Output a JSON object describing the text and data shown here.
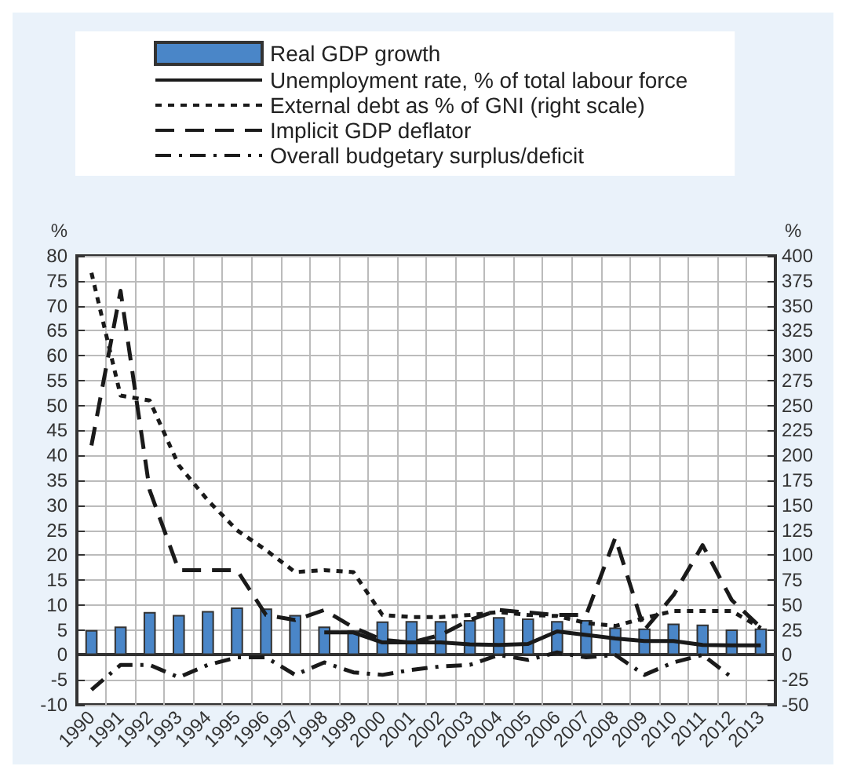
{
  "chart_data": {
    "type": "bar",
    "ylabel": "%",
    "y2label": "%",
    "categories": [
      "1990",
      "1991",
      "1992",
      "1993",
      "1994",
      "1995",
      "1996",
      "1997",
      "1998",
      "1999",
      "2000",
      "2001",
      "2002",
      "2003",
      "2004",
      "2005",
      "2006",
      "2007",
      "2008",
      "2009",
      "2010",
      "2011",
      "2012",
      "2013"
    ],
    "series": [
      {
        "name": "Real GDP growth",
        "color": "#4a86c8",
        "values": [
          5,
          5.7,
          8.6,
          8,
          8.8,
          9.5,
          9.3,
          8,
          5.7,
          4.9,
          6.7,
          6.8,
          6.8,
          7,
          7.6,
          7.3,
          6.8,
          7,
          5.5,
          5.3,
          6.3,
          6.1,
          5.1,
          5.3
        ]
      },
      {
        "name": "Unemployment rate, % of total labour force",
        "type": "line",
        "color": "#1a1a1a",
        "line_style": "solid",
        "values": [
          null,
          null,
          null,
          null,
          null,
          null,
          null,
          null,
          4.5,
          4.5,
          2.5,
          2.5,
          2.5,
          2.1,
          2,
          2.2,
          4.7,
          4,
          3.3,
          2.8,
          2.8,
          2,
          1.9,
          1.9
        ]
      },
      {
        "name": "External debt as % of GNI (right scale)",
        "type": "line",
        "axis": "y2",
        "color": "#1a1a1a",
        "line_style": "dotted",
        "values": [
          383,
          260,
          255,
          190,
          155,
          125,
          105,
          83,
          85,
          83,
          40,
          38,
          38,
          40,
          43,
          40,
          39,
          32,
          29,
          37,
          44,
          44,
          44,
          27
        ]
      },
      {
        "name": "Implicit GDP deflator",
        "type": "line",
        "color": "#1a1a1a",
        "line_style": "dashed",
        "values": [
          42,
          73,
          33,
          17,
          17,
          17,
          8,
          7,
          9,
          5.5,
          3,
          2.5,
          4,
          7,
          9,
          8.5,
          8,
          8,
          23.5,
          5,
          12,
          22,
          11,
          5.5
        ]
      },
      {
        "name": "Overall budgetary surplus/deficit",
        "type": "line",
        "color": "#1a1a1a",
        "line_style": "dashdot",
        "values": [
          -7,
          -2,
          -2,
          -4.5,
          -2,
          -0.5,
          -0.5,
          -4,
          -1.5,
          -3.5,
          -4,
          -3,
          -2.3,
          -2,
          0,
          -1,
          0.5,
          -0.5,
          0,
          -4,
          -1.5,
          0,
          -4.5,
          null
        ]
      }
    ],
    "ylim": [
      -10,
      80
    ],
    "yticks": [
      -10,
      -5,
      0,
      5,
      10,
      15,
      20,
      25,
      30,
      35,
      40,
      45,
      50,
      55,
      60,
      65,
      70,
      75,
      80
    ],
    "y2lim": [
      -50,
      400
    ],
    "y2ticks": [
      -50,
      -25,
      0,
      25,
      50,
      75,
      100,
      125,
      150,
      175,
      200,
      225,
      250,
      275,
      300,
      325,
      350,
      375,
      400
    ],
    "grid": true,
    "legend": "top",
    "marker": "none"
  }
}
